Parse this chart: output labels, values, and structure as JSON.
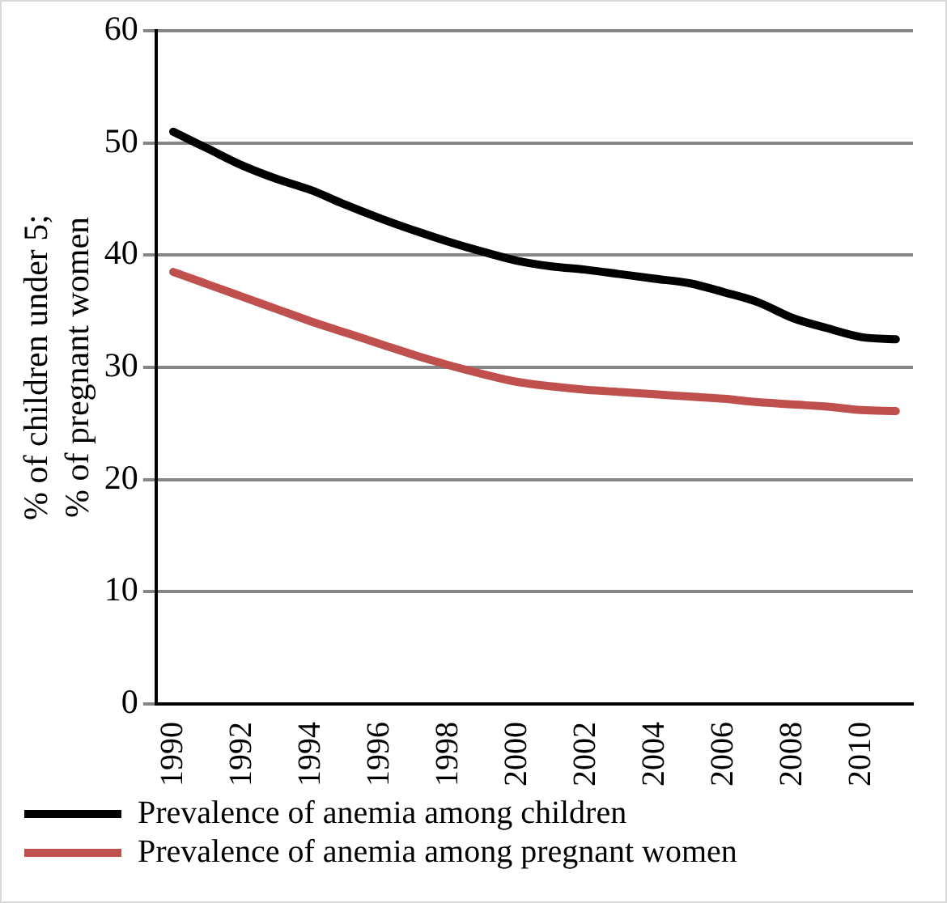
{
  "chart_data": {
    "type": "line",
    "ylabel": "% of children under 5;\n% of pregnant women",
    "categories": [
      "1990",
      null,
      "1992",
      null,
      "1994",
      null,
      "1996",
      null,
      "1998",
      null,
      "2000",
      null,
      "2002",
      null,
      "2004",
      null,
      "2006",
      null,
      "2008",
      null,
      "2010",
      null
    ],
    "series": [
      {
        "name": "Prevalence of anemia among children",
        "color": "#000000",
        "values": [
          51,
          49.5,
          48,
          46.8,
          45.8,
          44.5,
          43.3,
          42.2,
          41.2,
          40.3,
          39.5,
          39,
          38.7,
          38.3,
          37.9,
          37.5,
          36.7,
          35.8,
          34.4,
          33.5,
          32.7,
          32.5
        ]
      },
      {
        "name": "Prevalence of anemia among pregnant women",
        "color": "#c0504d",
        "values": [
          38.5,
          37.4,
          36.3,
          35.2,
          34.1,
          33.1,
          32.1,
          31.1,
          30.2,
          29.4,
          28.7,
          28.3,
          28,
          27.8,
          27.6,
          27.4,
          27.2,
          26.9,
          26.7,
          26.5,
          26.2,
          26.1
        ]
      }
    ],
    "ylim": [
      0,
      60
    ],
    "yticks": [
      0,
      10,
      20,
      30,
      40,
      50,
      60
    ],
    "grid": "y",
    "legend": "bottom",
    "marker": "none",
    "line_style": "solid"
  }
}
